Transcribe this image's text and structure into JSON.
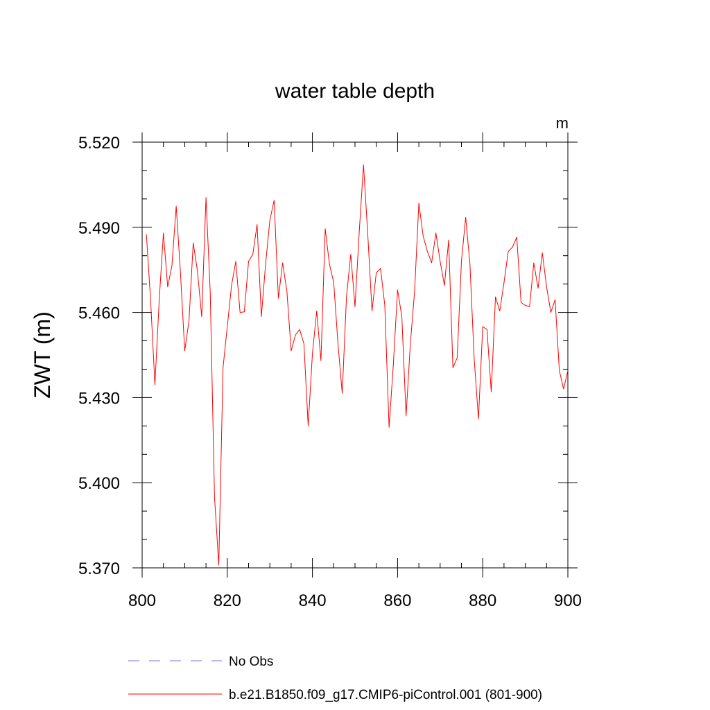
{
  "chart_data": {
    "type": "line",
    "title": "water table depth",
    "ylabel": "ZWT  (m)",
    "units": "m",
    "xlim": [
      800,
      900
    ],
    "ylim": [
      5.37,
      5.52
    ],
    "x_ticks": [
      800,
      820,
      840,
      860,
      880,
      900
    ],
    "x_tick_labels": [
      "800",
      "820",
      "840",
      "860",
      "880",
      "900"
    ],
    "y_ticks": [
      5.37,
      5.4,
      5.43,
      5.46,
      5.49,
      5.52
    ],
    "y_tick_labels": [
      "5.370",
      "5.400",
      "5.430",
      "5.460",
      "5.490",
      "5.520"
    ],
    "legend_position": "bottom",
    "series": [
      {
        "name": "No Obs",
        "color": "#7777cc",
        "dashed": true,
        "x": [],
        "y": []
      },
      {
        "name": "b.e21.B1850.f09_g17.CMIP6-piControl.001 (801-900)",
        "color": "#ff0000",
        "dashed": false,
        "x": [
          801,
          802,
          803,
          804,
          805,
          806,
          807,
          808,
          809,
          810,
          811,
          812,
          813,
          814,
          815,
          816,
          817,
          818,
          819,
          820,
          821,
          822,
          823,
          824,
          825,
          826,
          827,
          828,
          829,
          830,
          831,
          832,
          833,
          834,
          835,
          836,
          837,
          838,
          839,
          840,
          841,
          842,
          843,
          844,
          845,
          846,
          847,
          848,
          849,
          850,
          851,
          852,
          853,
          854,
          855,
          856,
          857,
          858,
          859,
          860,
          861,
          862,
          863,
          864,
          865,
          866,
          867,
          868,
          869,
          870,
          871,
          872,
          873,
          874,
          875,
          876,
          877,
          878,
          879,
          880,
          881,
          882,
          883,
          884,
          885,
          886,
          887,
          888,
          889,
          890,
          891,
          892,
          893,
          894,
          895,
          896,
          897,
          898,
          899,
          900
        ],
        "y": [
          5.4875,
          5.464,
          5.4345,
          5.464,
          5.488,
          5.469,
          5.4765,
          5.4975,
          5.474,
          5.4465,
          5.457,
          5.4845,
          5.4745,
          5.4585,
          5.5005,
          5.467,
          5.395,
          5.371,
          5.4405,
          5.455,
          5.4695,
          5.478,
          5.46,
          5.4602,
          5.478,
          5.4805,
          5.491,
          5.4585,
          5.477,
          5.4925,
          5.4995,
          5.465,
          5.4775,
          5.4675,
          5.4465,
          5.452,
          5.454,
          5.449,
          5.42,
          5.4455,
          5.4605,
          5.443,
          5.4895,
          5.477,
          5.4705,
          5.449,
          5.4315,
          5.4655,
          5.4805,
          5.462,
          5.4885,
          5.512,
          5.4875,
          5.4605,
          5.474,
          5.4755,
          5.4625,
          5.4195,
          5.4415,
          5.468,
          5.4585,
          5.4235,
          5.449,
          5.4675,
          5.4985,
          5.487,
          5.4815,
          5.4775,
          5.488,
          5.478,
          5.4695,
          5.4855,
          5.4405,
          5.444,
          5.478,
          5.4935,
          5.477,
          5.4435,
          5.4225,
          5.455,
          5.454,
          5.432,
          5.4655,
          5.4605,
          5.4705,
          5.4815,
          5.483,
          5.4865,
          5.4635,
          5.4625,
          5.462,
          5.4775,
          5.4685,
          5.481,
          5.469,
          5.46,
          5.4645,
          5.4395,
          5.433,
          5.4395
        ]
      }
    ]
  }
}
